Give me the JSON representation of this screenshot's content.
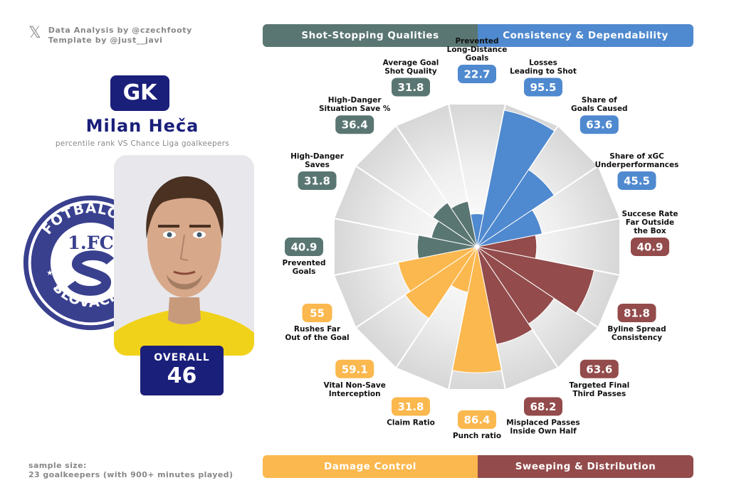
{
  "credits": {
    "icon": "x-logo-icon",
    "line1": "Data Analysis by @czechfooty",
    "line2": "Template by @just__javi"
  },
  "player": {
    "position": "GK",
    "name": "Milan Heča",
    "subtitle": "percentile rank VS Chance Liga goalkeepers",
    "overall_label": "OVERALL",
    "overall_value": "46"
  },
  "club_logo": {
    "top_text": "FOTBALOVÝ",
    "mid_text": "1.FC",
    "bottom_text": "SLOVÁCKO"
  },
  "footer": {
    "line1": "sample size:",
    "line2": "23 goalkeepers (with 900+ minutes played)"
  },
  "categories": [
    {
      "name": "Shot-Stopping Qualities",
      "color": "#5a7672"
    },
    {
      "name": "Consistency & Dependability",
      "color": "#4f89cf"
    },
    {
      "name": "Damage Control",
      "color": "#fbb84e"
    },
    {
      "name": "Sweeping & Distribution",
      "color": "#934b4b"
    }
  ],
  "colors": {
    "shot_stopping": "#5a7672",
    "consistency": "#4f89cf",
    "damage_control": "#fbb84e",
    "distribution": "#934b4b",
    "navy": "#1a1f7a"
  },
  "chart_data": {
    "type": "polar-bar",
    "scale": [
      0,
      100
    ],
    "metrics": [
      {
        "label": "Prevented\nLong-Distance\nGoals",
        "value": 22.7,
        "category": "Consistency & Dependability"
      },
      {
        "label": "Losses\nLeading to Shot",
        "value": 95.5,
        "category": "Consistency & Dependability"
      },
      {
        "label": "Share of\nGoals Caused",
        "value": 63.6,
        "category": "Consistency & Dependability"
      },
      {
        "label": "Share of xGC\nUnderperformances",
        "value": 45.5,
        "category": "Consistency & Dependability"
      },
      {
        "label": "Succese Rate\nFar Outside\nthe Box",
        "value": 40.9,
        "category": "Sweeping & Distribution"
      },
      {
        "label": "Byline Spread\nConsistency",
        "value": 81.8,
        "category": "Sweeping & Distribution"
      },
      {
        "label": "Targeted Final\nThird Passes",
        "value": 63.6,
        "category": "Sweeping & Distribution"
      },
      {
        "label": "Misplaced Passes\nInside Own Half",
        "value": 68.2,
        "category": "Sweeping & Distribution"
      },
      {
        "label": "Punch ratio",
        "value": 86.4,
        "category": "Damage Control"
      },
      {
        "label": "Claim Ratio",
        "value": 31.8,
        "category": "Damage Control"
      },
      {
        "label": "Vital Non-Save\nInterception",
        "value": 59.1,
        "category": "Damage Control"
      },
      {
        "label": "Rushes Far\nOut of the Goal",
        "value": 55,
        "category": "Damage Control"
      },
      {
        "label": "Prevented\nGoals",
        "value": 40.9,
        "category": "Shot-Stopping Qualities"
      },
      {
        "label": "High-Danger\nSaves",
        "value": 31.8,
        "category": "Shot-Stopping Qualities"
      },
      {
        "label": "High-Danger\nSituation Save %",
        "value": 36.4,
        "category": "Shot-Stopping Qualities"
      },
      {
        "label": "Average Goal\nShot Quality",
        "value": 31.8,
        "category": "Shot-Stopping Qualities"
      }
    ]
  }
}
